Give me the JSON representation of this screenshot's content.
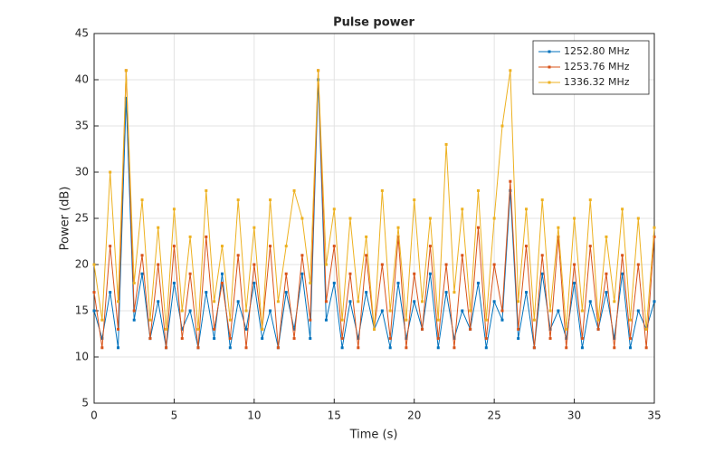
{
  "chart_data": {
    "type": "line",
    "title": "Pulse power",
    "x_label": "Time (s)",
    "y_label": "Power (dB)",
    "x": [
      0,
      0.5,
      1,
      1.5,
      2,
      2.5,
      3,
      3.5,
      4,
      4.5,
      5,
      5.5,
      6,
      6.5,
      7,
      7.5,
      8,
      8.5,
      9,
      9.5,
      10,
      10.5,
      11,
      11.5,
      12,
      12.5,
      13,
      13.5,
      14,
      14.5,
      15,
      15.5,
      16,
      16.5,
      17,
      17.5,
      18,
      18.5,
      19,
      19.5,
      20,
      20.5,
      21,
      21.5,
      22,
      22.5,
      23,
      23.5,
      24,
      24.5,
      25,
      25.5,
      26,
      26.5,
      27,
      27.5,
      28,
      28.5,
      29,
      29.5,
      30,
      30.5,
      31,
      31.5,
      32,
      32.5,
      33,
      33.5,
      34,
      34.5,
      35
    ],
    "series": [
      {
        "name": "1252.80 MHz",
        "color": "#0072BD",
        "values": [
          15,
          12,
          17,
          11,
          38,
          14,
          19,
          12,
          16,
          11,
          18,
          13,
          15,
          11,
          17,
          12,
          19,
          11,
          16,
          13,
          18,
          12,
          15,
          11,
          17,
          13,
          19,
          12,
          40,
          14,
          18,
          11,
          16,
          12,
          17,
          13,
          15,
          11,
          18,
          12,
          16,
          13,
          19,
          11,
          17,
          12,
          15,
          13,
          18,
          11,
          16,
          14,
          28,
          12,
          17,
          11,
          19,
          13,
          15,
          12,
          18,
          11,
          16,
          13,
          17,
          12,
          19,
          11,
          15,
          13,
          16
        ]
      },
      {
        "name": "1253.76 MHz",
        "color": "#D95319",
        "values": [
          17,
          11,
          22,
          13,
          41,
          15,
          21,
          12,
          20,
          11,
          22,
          12,
          19,
          11,
          23,
          13,
          18,
          12,
          21,
          11,
          20,
          13,
          22,
          11,
          19,
          12,
          21,
          14,
          41,
          16,
          22,
          12,
          19,
          11,
          21,
          13,
          20,
          12,
          23,
          11,
          19,
          13,
          22,
          12,
          20,
          11,
          21,
          13,
          24,
          12,
          20,
          15,
          29,
          13,
          22,
          11,
          21,
          12,
          23,
          11,
          20,
          12,
          22,
          13,
          19,
          11,
          21,
          12,
          20,
          11,
          23
        ]
      },
      {
        "name": "1336.32 MHz",
        "color": "#EDB120",
        "values": [
          20,
          14,
          30,
          16,
          41,
          18,
          27,
          14,
          24,
          13,
          26,
          15,
          23,
          13,
          28,
          16,
          22,
          14,
          27,
          15,
          24,
          13,
          27,
          16,
          22,
          28,
          25,
          18,
          41,
          20,
          26,
          14,
          25,
          16,
          23,
          13,
          28,
          15,
          24,
          14,
          27,
          16,
          25,
          14,
          33,
          17,
          26,
          15,
          28,
          14,
          25,
          35,
          41,
          16,
          26,
          14,
          27,
          15,
          24,
          13,
          25,
          15,
          27,
          14,
          23,
          16,
          26,
          14,
          25,
          13,
          24
        ]
      }
    ],
    "xlim": [
      0,
      35
    ],
    "xticks": [
      0,
      5,
      10,
      15,
      20,
      25,
      30,
      35
    ],
    "ylim": [
      5,
      45
    ],
    "yticks": [
      5,
      10,
      15,
      20,
      25,
      30,
      35,
      40,
      45
    ],
    "grid": true,
    "legend": "northeast"
  }
}
